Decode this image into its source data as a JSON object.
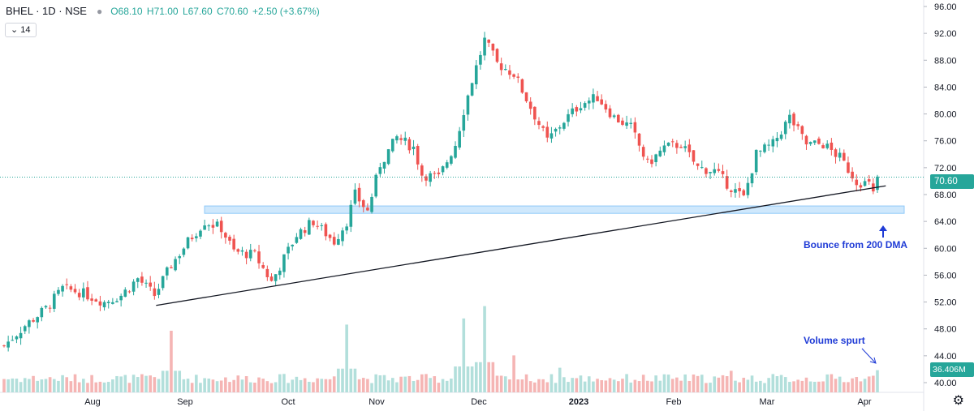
{
  "header": {
    "symbol": "BHEL · 1D · NSE",
    "open": "O68.10",
    "high": "H71.00",
    "low": "L67.60",
    "close": "C70.60",
    "change": "+2.50 (+3.67%)",
    "volume_ma_length": "14"
  },
  "annotations": {
    "bounce_text": "Bounce from 200 DMA",
    "volume_text": "Volume spurt"
  },
  "price_labels": {
    "last_price": "70.60",
    "last_volume": "36.406M"
  },
  "colors": {
    "up": "#26a69a",
    "down": "#ef5350",
    "up_volume": "#b2dfdb",
    "down_volume": "#f5b5b4",
    "support_zone": "#bbdefb",
    "annotation": "#1f3bd6",
    "last_price_line": "#26a69a"
  },
  "chart_data": {
    "type": "candlestick",
    "symbol": "BHEL",
    "timeframe": "1D",
    "exchange": "NSE",
    "y_ticks": [
      "96.00",
      "92.00",
      "88.00",
      "84.00",
      "80.00",
      "76.00",
      "72.00",
      "68.00",
      "64.00",
      "60.00",
      "56.00",
      "52.00",
      "48.00",
      "44.00",
      "40.00"
    ],
    "ylim": [
      40,
      97
    ],
    "x_labels": [
      "Aug",
      "Sep",
      "Oct",
      "Nov",
      "Dec",
      "2023",
      "Feb",
      "Mar",
      "Apr"
    ],
    "last_close": 70.6,
    "last_volume": "36.406M",
    "price_path": [
      [
        0,
        45.5
      ],
      [
        5,
        48.5
      ],
      [
        10,
        51
      ],
      [
        14,
        54
      ],
      [
        18,
        53.5
      ],
      [
        24,
        52
      ],
      [
        28,
        53
      ],
      [
        32,
        55.5
      ],
      [
        36,
        53
      ],
      [
        40,
        57.5
      ],
      [
        44,
        61
      ],
      [
        48,
        64
      ],
      [
        52,
        63
      ],
      [
        55,
        59.5
      ],
      [
        60,
        59
      ],
      [
        64,
        55
      ],
      [
        70,
        62
      ],
      [
        74,
        64
      ],
      [
        79,
        61
      ],
      [
        82,
        64
      ],
      [
        84,
        68
      ],
      [
        87,
        65.5
      ],
      [
        90,
        72.5
      ],
      [
        94,
        76.5
      ],
      [
        98,
        75
      ],
      [
        100,
        71
      ],
      [
        104,
        70.5
      ],
      [
        106,
        73
      ],
      [
        108,
        75.5
      ],
      [
        110,
        80.5
      ],
      [
        112,
        85
      ],
      [
        115,
        91
      ],
      [
        118,
        87.5
      ],
      [
        122,
        86
      ],
      [
        126,
        81
      ],
      [
        130,
        76
      ],
      [
        134,
        79
      ],
      [
        138,
        81.5
      ],
      [
        142,
        82.5
      ],
      [
        146,
        79.5
      ],
      [
        150,
        78
      ],
      [
        154,
        72.5
      ],
      [
        158,
        75
      ],
      [
        162,
        75.5
      ],
      [
        166,
        72
      ],
      [
        170,
        71.5
      ],
      [
        174,
        69
      ],
      [
        177,
        67.5
      ],
      [
        180,
        74
      ],
      [
        184,
        75.5
      ],
      [
        188,
        79.5
      ],
      [
        192,
        75.5
      ],
      [
        196,
        75.5
      ],
      [
        200,
        73.5
      ],
      [
        204,
        70
      ],
      [
        207,
        69.5
      ],
      [
        208,
        68
      ],
      [
        209,
        70.6
      ]
    ],
    "support_zone": {
      "low": 65.2,
      "high": 66.3
    },
    "trendline": {
      "from": [
        36,
        51.5
      ],
      "to": [
        211,
        69.3
      ]
    },
    "volume_spikes": [
      [
        40,
        10
      ],
      [
        82,
        11
      ],
      [
        110,
        12
      ],
      [
        115,
        14
      ],
      [
        122,
        6
      ],
      [
        133,
        4
      ],
      [
        174,
        3.5
      ]
    ]
  }
}
